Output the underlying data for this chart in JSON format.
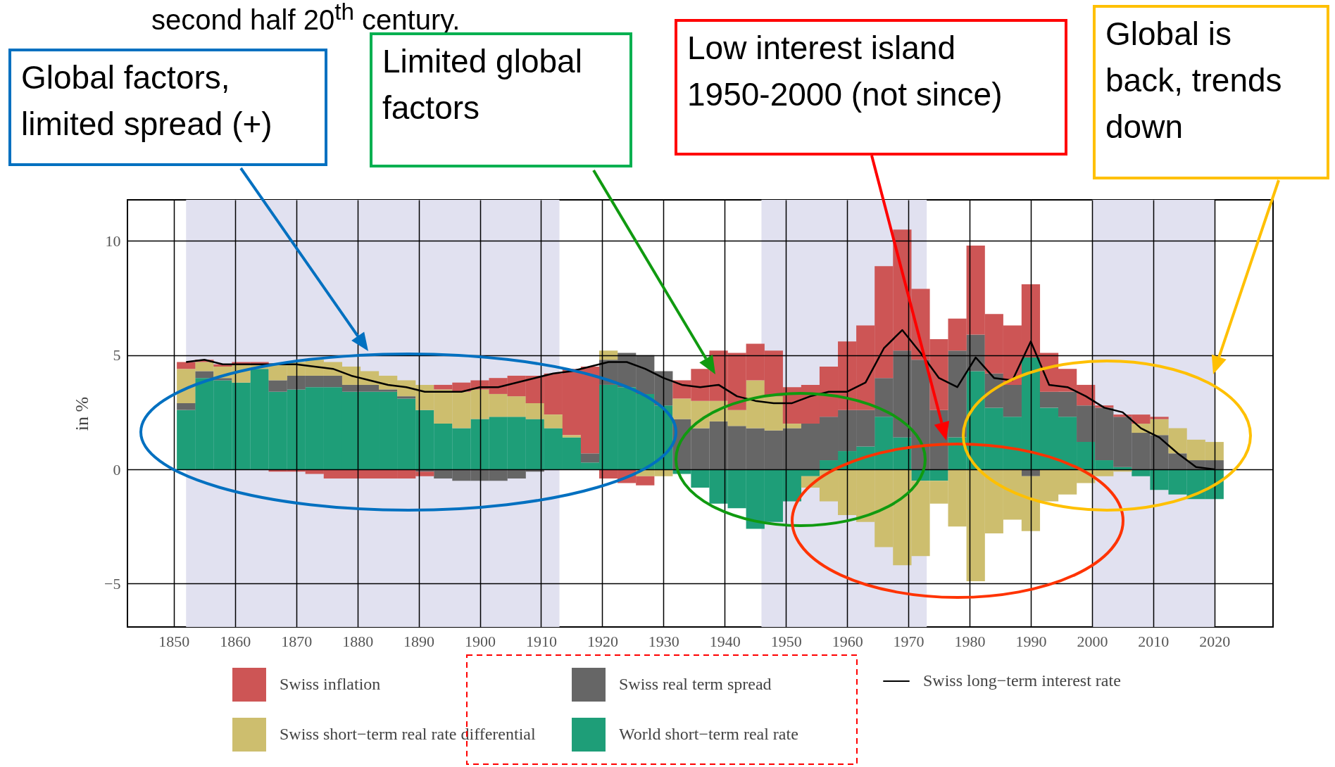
{
  "chart_data": {
    "type": "bar",
    "stacked": true,
    "ylabel": "in %",
    "legend": "bottom",
    "grid": true,
    "annotations": [
      "second half 20$^{th}$ century.",
      "Global factors, limited spread (+)",
      "Limited global factors",
      "Low interest island 1950-2000 (not since)",
      "Global is back, trends down"
    ],
    "x": [
      1852,
      1855,
      1858,
      1861,
      1864,
      1867,
      1870,
      1873,
      1876,
      1879,
      1882,
      1885,
      1888,
      1891,
      1894,
      1897,
      1900,
      1903,
      1906,
      1909,
      1912,
      1915,
      1918,
      1921,
      1924,
      1927,
      1930,
      1933,
      1936,
      1939,
      1942,
      1945,
      1948,
      1951,
      1954,
      1957,
      1960,
      1963,
      1966,
      1969,
      1972,
      1975,
      1978,
      1981,
      1984,
      1987,
      1990,
      1993,
      1996,
      1999,
      2002,
      2005,
      2008,
      2011,
      2014,
      2017,
      2020
    ],
    "xlim": [
      1843,
      2029
    ],
    "xticks": [
      1850,
      1860,
      1870,
      1880,
      1890,
      1900,
      1910,
      1920,
      1930,
      1940,
      1950,
      1960,
      1970,
      1980,
      1990,
      2000,
      2010,
      2020
    ],
    "ylim": [
      -6.9,
      11.8
    ],
    "yticks": [
      {
        "value": -5,
        "label": "−5"
      },
      0,
      5,
      10
    ],
    "bands": [
      {
        "axis": "x",
        "from": 1852,
        "to": 1913,
        "color": "#e1e1f0"
      },
      {
        "axis": "x",
        "from": 1946,
        "to": 1973,
        "color": "#e1e1f0"
      },
      {
        "axis": "x",
        "from": 2000,
        "to": 2020,
        "color": "#e1e1f0"
      }
    ],
    "series": [
      {
        "name": "World short−term real rate",
        "color": "#1e9e78",
        "values": [
          2.6,
          4.0,
          3.9,
          3.8,
          4.4,
          3.4,
          3.5,
          3.6,
          3.6,
          3.4,
          3.4,
          3.4,
          3.1,
          2.6,
          2.0,
          1.8,
          2.2,
          2.3,
          2.3,
          2.2,
          1.8,
          1.4,
          0.3,
          3.7,
          3.6,
          3.3,
          2.8,
          -0.2,
          -0.8,
          -1.5,
          -1.7,
          -2.6,
          -2.3,
          -1.4,
          -0.3,
          0.4,
          0.8,
          1.0,
          2.3,
          1.4,
          -0.5,
          -0.5,
          1.4,
          4.3,
          2.7,
          2.3,
          4.9,
          2.7,
          2.3,
          1.2,
          0.4,
          0.1,
          -0.3,
          -0.9,
          -1.1,
          -1.3,
          -1.3
        ]
      },
      {
        "name": "Swiss real term spread",
        "color": "#666666",
        "values": [
          0.3,
          0.3,
          0.1,
          0,
          0,
          0.5,
          0.6,
          0.5,
          0.5,
          0.3,
          0.3,
          0.1,
          0.1,
          -0.1,
          -0.4,
          -0.5,
          -0.5,
          -0.5,
          -0.4,
          -0.1,
          0,
          0,
          0.4,
          1.1,
          1.5,
          1.7,
          1.5,
          2.2,
          1.8,
          2.1,
          1.9,
          1.8,
          1.7,
          1.8,
          2.0,
          1.9,
          1.8,
          1.6,
          1.7,
          3.8,
          4.8,
          2.6,
          3.8,
          1.6,
          1.5,
          1.4,
          -0.3,
          0.7,
          1.1,
          1.6,
          2.3,
          2.2,
          1.6,
          1.5,
          0.7,
          0.4,
          0.4
        ]
      },
      {
        "name": "Swiss short−term real rate differential",
        "color": "#cdbe6e",
        "values": [
          1.5,
          0.4,
          0.5,
          0.8,
          0.2,
          0.7,
          0.6,
          0.7,
          0.6,
          0.8,
          0.6,
          0.6,
          0.7,
          1.1,
          1.5,
          1.6,
          1.3,
          1.0,
          0.9,
          0.7,
          0.6,
          0.1,
          0,
          0.4,
          0,
          -0.3,
          -0.3,
          0.9,
          1.2,
          0.9,
          0.7,
          2.1,
          1.5,
          0.2,
          -0.5,
          -1.4,
          -2.0,
          -2.3,
          -3.4,
          -4.2,
          -3.3,
          -1.0,
          -2.5,
          -4.9,
          -2.8,
          -2.2,
          -2.4,
          -1.4,
          -1.1,
          -0.6,
          -0.3,
          -0.1,
          0.4,
          0.7,
          1.1,
          0.9,
          0.8
        ]
      },
      {
        "name": "Swiss inflation",
        "color": "#cd5555",
        "values": [
          0.3,
          0.1,
          0.1,
          0.1,
          0.1,
          -0.1,
          -0.1,
          -0.2,
          -0.4,
          -0.4,
          -0.4,
          -0.4,
          -0.4,
          -0.2,
          0.2,
          0.4,
          0.4,
          0.7,
          0.9,
          1.2,
          1.8,
          2.9,
          3.8,
          -0.4,
          -0.6,
          -0.4,
          0,
          0.8,
          1.4,
          2.2,
          2.5,
          1.6,
          2.0,
          1.6,
          1.7,
          2.2,
          3.0,
          3.7,
          4.9,
          5.3,
          3.1,
          3.1,
          1.4,
          3.9,
          2.6,
          2.6,
          3.2,
          1.7,
          1.0,
          0.9,
          0.1,
          0.1,
          0.4,
          0.1,
          0,
          0,
          0
        ]
      },
      {
        "name": "Swiss long−term interest rate",
        "type": "line",
        "color": "#000000",
        "values": [
          4.7,
          4.8,
          4.6,
          4.6,
          4.6,
          4.6,
          4.6,
          4.5,
          4.4,
          4.1,
          3.9,
          3.7,
          3.6,
          3.4,
          3.4,
          3.4,
          3.6,
          3.6,
          3.8,
          4.0,
          4.2,
          4.3,
          4.5,
          4.7,
          4.7,
          4.4,
          4.0,
          3.7,
          3.6,
          3.7,
          3.2,
          3.0,
          2.9,
          2.9,
          3.2,
          3.4,
          3.4,
          3.8,
          5.3,
          6.1,
          5.1,
          4.0,
          3.6,
          4.9,
          4.0,
          3.9,
          5.6,
          3.7,
          3.6,
          3.2,
          2.7,
          2.5,
          1.8,
          1.4,
          0.7,
          0.1,
          0.0
        ]
      }
    ]
  }
}
